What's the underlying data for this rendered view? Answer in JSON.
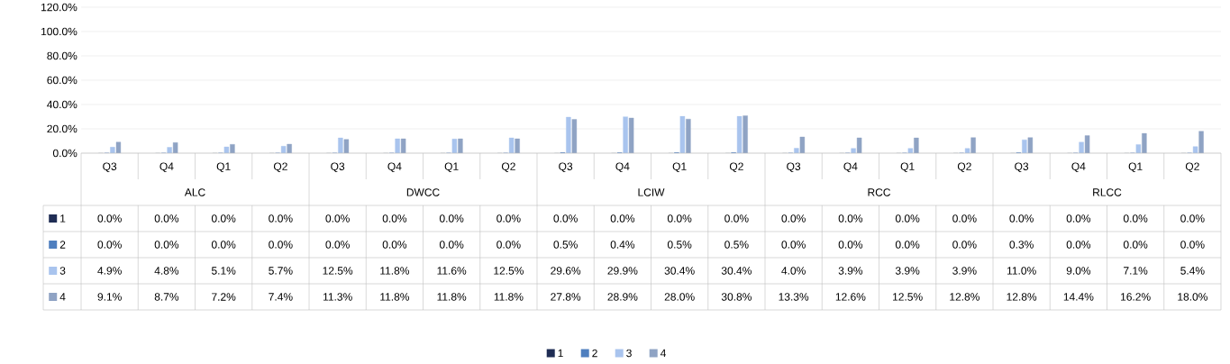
{
  "chart_data": {
    "type": "bar",
    "categories": [
      "Q3",
      "Q4",
      "Q1",
      "Q2",
      "Q3",
      "Q4",
      "Q1",
      "Q2",
      "Q3",
      "Q4",
      "Q1",
      "Q2",
      "Q3",
      "Q4",
      "Q1",
      "Q2",
      "Q3",
      "Q4",
      "Q1",
      "Q2"
    ],
    "annotations": [
      "ALC",
      "DWCC",
      "LCIW",
      "RCC",
      "RLCC"
    ],
    "series": [
      {
        "name": "1",
        "color": "#1f2d54",
        "values": [
          0.0,
          0.0,
          0.0,
          0.0,
          0.0,
          0.0,
          0.0,
          0.0,
          0.0,
          0.0,
          0.0,
          0.0,
          0.0,
          0.0,
          0.0,
          0.0,
          0.0,
          0.0,
          0.0,
          0.0
        ],
        "value_labels": [
          "0.0%",
          "0.0%",
          "0.0%",
          "0.0%",
          "0.0%",
          "0.0%",
          "0.0%",
          "0.0%",
          "0.0%",
          "0.0%",
          "0.0%",
          "0.0%",
          "0.0%",
          "0.0%",
          "0.0%",
          "0.0%",
          "0.0%",
          "0.0%",
          "0.0%",
          "0.0%"
        ]
      },
      {
        "name": "2",
        "color": "#4f7fbf",
        "values": [
          0.0,
          0.0,
          0.0,
          0.0,
          0.0,
          0.0,
          0.0,
          0.0,
          0.5,
          0.4,
          0.5,
          0.5,
          0.0,
          0.0,
          0.0,
          0.0,
          0.3,
          0.0,
          0.0,
          0.0
        ],
        "value_labels": [
          "0.0%",
          "0.0%",
          "0.0%",
          "0.0%",
          "0.0%",
          "0.0%",
          "0.0%",
          "0.0%",
          "0.5%",
          "0.4%",
          "0.5%",
          "0.5%",
          "0.0%",
          "0.0%",
          "0.0%",
          "0.0%",
          "0.3%",
          "0.0%",
          "0.0%",
          "0.0%"
        ]
      },
      {
        "name": "3",
        "color": "#a9c4ee",
        "values": [
          4.9,
          4.8,
          5.1,
          5.7,
          12.5,
          11.8,
          11.6,
          12.5,
          29.6,
          29.9,
          30.4,
          30.4,
          4.0,
          3.9,
          3.9,
          3.9,
          11.0,
          9.0,
          7.1,
          5.4
        ],
        "value_labels": [
          "4.9%",
          "4.8%",
          "5.1%",
          "5.7%",
          "12.5%",
          "11.8%",
          "11.6%",
          "12.5%",
          "29.6%",
          "29.9%",
          "30.4%",
          "30.4%",
          "4.0%",
          "3.9%",
          "3.9%",
          "3.9%",
          "11.0%",
          "9.0%",
          "7.1%",
          "5.4%"
        ]
      },
      {
        "name": "4",
        "color": "#8fa3c4",
        "values": [
          9.1,
          8.7,
          7.2,
          7.4,
          11.3,
          11.8,
          11.8,
          11.8,
          27.8,
          28.9,
          28.0,
          30.8,
          13.3,
          12.6,
          12.5,
          12.8,
          12.8,
          14.4,
          16.2,
          18.0
        ],
        "value_labels": [
          "9.1%",
          "8.7%",
          "7.2%",
          "7.4%",
          "11.3%",
          "11.8%",
          "11.8%",
          "11.8%",
          "27.8%",
          "28.9%",
          "28.0%",
          "30.8%",
          "13.3%",
          "12.6%",
          "12.5%",
          "12.8%",
          "12.8%",
          "14.4%",
          "16.2%",
          "18.0%"
        ]
      }
    ],
    "ylim": [
      0,
      120
    ],
    "yticks": [
      {
        "value": 0,
        "label": "0.0%"
      },
      {
        "value": 20,
        "label": "20.0%"
      },
      {
        "value": 40,
        "label": "40.0%"
      },
      {
        "value": 60,
        "label": "60.0%"
      },
      {
        "value": 80,
        "label": "80.0%"
      },
      {
        "value": 100,
        "label": "100.0%"
      },
      {
        "value": 120,
        "label": "120.0%"
      }
    ],
    "grid": "y",
    "legend": "bottom"
  }
}
